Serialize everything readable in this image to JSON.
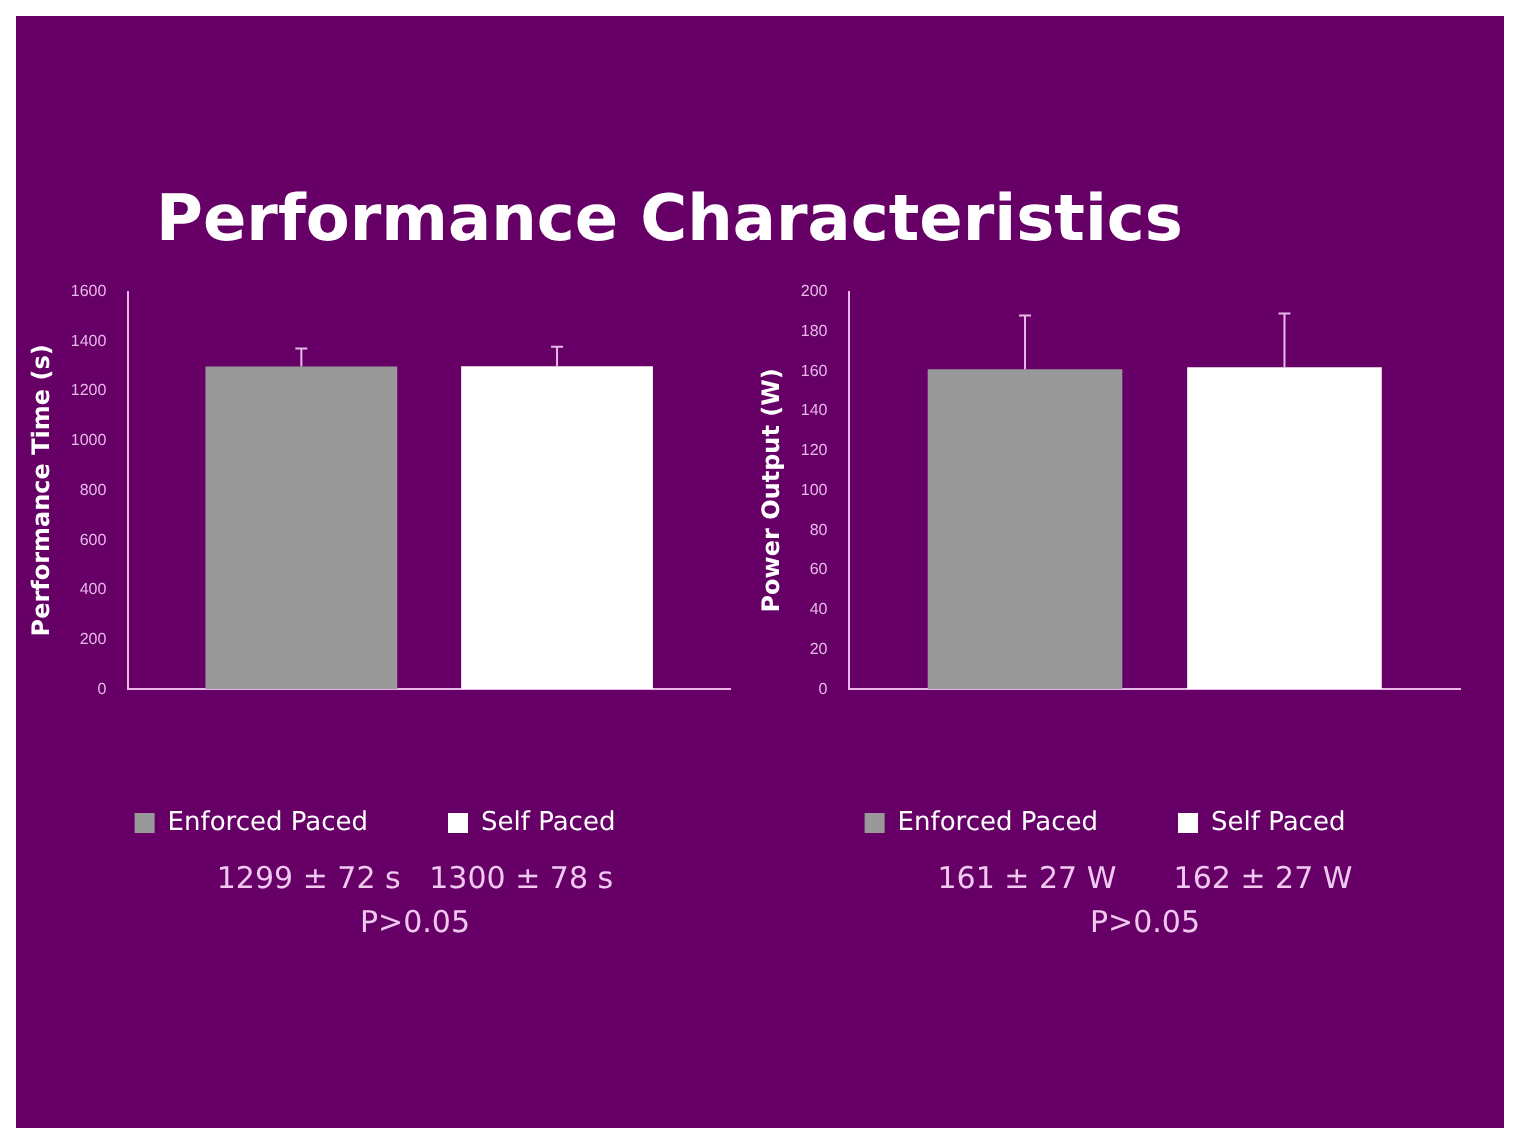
{
  "chart_data": [
    {
      "type": "bar",
      "title": "Performance Characteristics",
      "ylabel": "Performance Time (s)",
      "categories": [
        null
      ],
      "series": [
        {
          "name": "Enforced Paced",
          "color": "#999999",
          "values": [
            1299
          ],
          "errors": [
            [
              1299,
              1371
            ]
          ]
        },
        {
          "name": "Self Paced",
          "color": "#ffffff",
          "values": [
            1300
          ],
          "errors": [
            [
              1300,
              1378
            ]
          ]
        }
      ],
      "ylim": [
        0,
        1600
      ],
      "yticks": [
        0,
        200,
        400,
        600,
        800,
        1000,
        1200,
        1400,
        1600
      ],
      "grid": false,
      "legend": "bottom",
      "annotations": [
        "1299 ± 72 s   1300 ± 78 s",
        "P>0.05"
      ]
    },
    {
      "type": "bar",
      "ylabel": "Power Output (W)",
      "categories": [
        null
      ],
      "series": [
        {
          "name": "Enforced Paced",
          "color": "#999999",
          "values": [
            161
          ],
          "errors": [
            [
              161,
              188
            ]
          ]
        },
        {
          "name": "Self Paced",
          "color": "#ffffff",
          "values": [
            162
          ],
          "errors": [
            [
              162,
              189
            ]
          ]
        }
      ],
      "ylim": [
        0,
        200
      ],
      "yticks": [
        0,
        20,
        40,
        60,
        80,
        100,
        120,
        140,
        160,
        180,
        200
      ],
      "grid": false,
      "legend": "bottom",
      "annotations": [
        "161 ± 27 W      162 ± 27 W",
        "P>0.05"
      ]
    }
  ]
}
